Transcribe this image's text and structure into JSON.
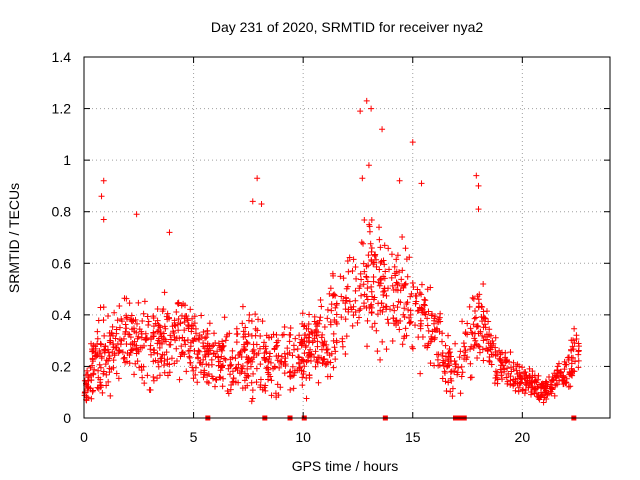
{
  "chart_data": {
    "type": "scatter",
    "title": "Day 231 of 2020, SRMTID for receiver nya2",
    "xlabel": "GPS time / hours",
    "ylabel": "SRMTID / TECUs",
    "xlim": [
      0,
      24
    ],
    "ylim": [
      0,
      1.4
    ],
    "xticks": [
      0,
      5,
      10,
      15,
      20
    ],
    "xtick_labels": [
      "0",
      "5",
      "10",
      "15",
      "20"
    ],
    "yticks": [
      0,
      0.2,
      0.4,
      0.6,
      0.8,
      1.0,
      1.2,
      1.4
    ],
    "ytick_labels": [
      "0",
      "0.2",
      "0.4",
      "0.6",
      "0.8",
      "1",
      "1.2",
      "1.4"
    ],
    "grid": true,
    "marker": "+",
    "color": "#ff0000",
    "series": [
      {
        "name": "nya2",
        "envelope_x": [
          0,
          0.5,
          1,
          2,
          3,
          4,
          5,
          6,
          7,
          8,
          9,
          10,
          11,
          12,
          13,
          14,
          15,
          16,
          16.5,
          17,
          18,
          19,
          20,
          21,
          22,
          22.6
        ],
        "envelope_mean": [
          0.08,
          0.22,
          0.24,
          0.32,
          0.28,
          0.33,
          0.3,
          0.22,
          0.25,
          0.24,
          0.22,
          0.26,
          0.3,
          0.46,
          0.52,
          0.5,
          0.44,
          0.32,
          0.22,
          0.18,
          0.36,
          0.2,
          0.15,
          0.1,
          0.18,
          0.28
        ],
        "envelope_spread": [
          0.06,
          0.12,
          0.14,
          0.14,
          0.14,
          0.15,
          0.14,
          0.11,
          0.13,
          0.14,
          0.12,
          0.13,
          0.15,
          0.2,
          0.22,
          0.2,
          0.18,
          0.14,
          0.1,
          0.1,
          0.16,
          0.07,
          0.05,
          0.04,
          0.06,
          0.1
        ],
        "outliers": [
          {
            "x": 0.9,
            "y": 0.92
          },
          {
            "x": 0.8,
            "y": 0.86
          },
          {
            "x": 0.9,
            "y": 0.77
          },
          {
            "x": 2.4,
            "y": 0.79
          },
          {
            "x": 3.9,
            "y": 0.72
          },
          {
            "x": 7.7,
            "y": 0.84
          },
          {
            "x": 7.9,
            "y": 0.93
          },
          {
            "x": 8.1,
            "y": 0.83
          },
          {
            "x": 12.6,
            "y": 1.19
          },
          {
            "x": 12.9,
            "y": 1.23
          },
          {
            "x": 13.1,
            "y": 1.2
          },
          {
            "x": 13.6,
            "y": 1.12
          },
          {
            "x": 13.0,
            "y": 0.98
          },
          {
            "x": 12.7,
            "y": 0.93
          },
          {
            "x": 15.0,
            "y": 1.07
          },
          {
            "x": 15.4,
            "y": 0.91
          },
          {
            "x": 14.4,
            "y": 0.92
          },
          {
            "x": 17.9,
            "y": 0.94
          },
          {
            "x": 18.0,
            "y": 0.9
          },
          {
            "x": 18.0,
            "y": 0.81
          }
        ],
        "zero_markers_x": [
          5.65,
          8.25,
          9.4,
          10.05,
          13.75,
          16.95,
          17.15,
          17.35,
          22.35
        ]
      }
    ]
  }
}
